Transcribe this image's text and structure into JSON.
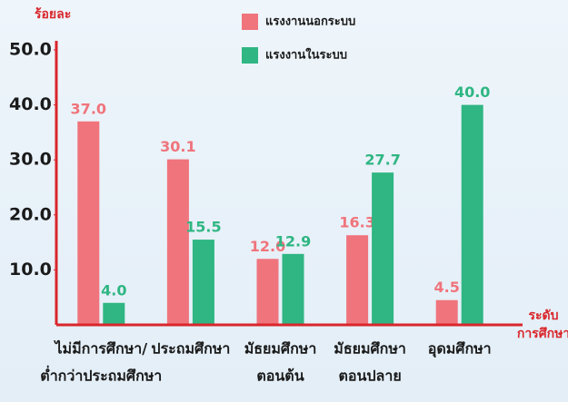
{
  "chart_data": {
    "type": "bar",
    "y_label": "ร้อยละ",
    "x_label": [
      "ระดับ",
      "การศึกษา"
    ],
    "categories": [
      [
        "ไม่มีการศึกษา/",
        "ต่ำกว่าประถมศึกษา"
      ],
      [
        "ประถมศึกษา"
      ],
      [
        "มัธยมศึกษา",
        "ตอนต้น"
      ],
      [
        "มัธยมศึกษา",
        "ตอนปลาย"
      ],
      [
        "อุดมศึกษา"
      ]
    ],
    "series": [
      {
        "name": "แรงงานนอกระบบ",
        "color": "#f0747c",
        "values": [
          37.0,
          30.1,
          12.0,
          16.3,
          4.5
        ],
        "value_labels": [
          "37.0",
          "30.1",
          "12.0",
          "16.3",
          "4.5"
        ]
      },
      {
        "name": "แรงงานในระบบ",
        "color": "#2fb683",
        "values": [
          4.0,
          15.5,
          12.9,
          27.7,
          40.0
        ],
        "value_labels": [
          "4.0",
          "15.5",
          "12.9",
          "27.7",
          "40.0"
        ]
      }
    ],
    "ylim": [
      0,
      50
    ],
    "yticks": [
      {
        "value": 10,
        "label": "10.0"
      },
      {
        "value": 20,
        "label": "20.0"
      },
      {
        "value": 30,
        "label": "30.0"
      },
      {
        "value": 40,
        "label": "40.0"
      },
      {
        "value": 50,
        "label": "50.0"
      }
    ]
  }
}
